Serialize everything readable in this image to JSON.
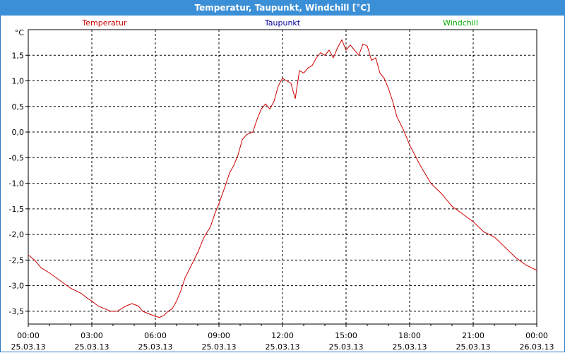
{
  "window": {
    "title": "Temperatur, Taupunkt, Windchill [°C]",
    "title_bar_color": "#3a8fd6"
  },
  "chart_data": {
    "type": "line",
    "title": "Temperatur, Taupunkt, Windchill [°C]",
    "ylabel": "°C",
    "xlabel": "",
    "ylim": [
      -3.75,
      2.0
    ],
    "xlim": [
      0,
      24
    ],
    "grid": true,
    "y_ticks": [
      -3.5,
      -3.0,
      -2.5,
      -2.0,
      -1.5,
      -1.0,
      -0.5,
      0.0,
      0.5,
      1.0,
      1.5
    ],
    "y_tick_labels": [
      "-3,5",
      "-3,0",
      "-2,5",
      "-2,0",
      "-1,5",
      "-1,0",
      "-0,5",
      "0,0",
      "0,5",
      "1,0",
      "1,5"
    ],
    "x_ticks": [
      {
        "x": 0,
        "time": "00:00",
        "date": "25.03.13"
      },
      {
        "x": 3,
        "time": "03:00",
        "date": "25.03.13"
      },
      {
        "x": 6,
        "time": "06:00",
        "date": "25.03.13"
      },
      {
        "x": 9,
        "time": "09:00",
        "date": "25.03.13"
      },
      {
        "x": 12,
        "time": "12:00",
        "date": "25.03.13"
      },
      {
        "x": 15,
        "time": "15:00",
        "date": "25.03.13"
      },
      {
        "x": 18,
        "time": "18:00",
        "date": "25.03.13"
      },
      {
        "x": 21,
        "time": "21:00",
        "date": "25.03.13"
      },
      {
        "x": 24,
        "time": "00:00",
        "date": "26.03.13"
      }
    ],
    "legend": [
      {
        "name": "Temperatur",
        "color": "#cc0000",
        "position": "left"
      },
      {
        "name": "Taupunkt",
        "color": "#000099",
        "position": "center"
      },
      {
        "name": "Windchill",
        "color": "#00aa00",
        "position": "right"
      }
    ],
    "series": [
      {
        "name": "Temperatur",
        "color": "#cc0000",
        "x": [
          0,
          0.3,
          0.6,
          1.0,
          1.5,
          2.0,
          2.5,
          2.8,
          3.0,
          3.3,
          3.6,
          3.9,
          4.2,
          4.4,
          4.6,
          4.9,
          5.2,
          5.4,
          5.7,
          6.0,
          6.2,
          6.4,
          6.6,
          6.8,
          7.0,
          7.2,
          7.4,
          7.7,
          8.0,
          8.3,
          8.6,
          8.8,
          9.0,
          9.3,
          9.5,
          9.7,
          9.9,
          10.1,
          10.3,
          10.6,
          10.8,
          11.0,
          11.2,
          11.4,
          11.6,
          11.8,
          12.0,
          12.2,
          12.4,
          12.6,
          12.8,
          13.0,
          13.2,
          13.4,
          13.6,
          13.8,
          14.0,
          14.2,
          14.4,
          14.6,
          14.8,
          15.0,
          15.2,
          15.4,
          15.6,
          15.8,
          16.0,
          16.2,
          16.4,
          16.6,
          16.8,
          17.0,
          17.2,
          17.4,
          17.7,
          18.0,
          18.5,
          19.0,
          19.5,
          20.0,
          20.5,
          21.0,
          21.5,
          22.0,
          22.5,
          23.0,
          23.5,
          24.0
        ],
        "values": [
          -2.4,
          -2.5,
          -2.65,
          -2.75,
          -2.9,
          -3.05,
          -3.15,
          -3.25,
          -3.3,
          -3.4,
          -3.45,
          -3.5,
          -3.5,
          -3.45,
          -3.4,
          -3.35,
          -3.4,
          -3.5,
          -3.55,
          -3.6,
          -3.62,
          -3.58,
          -3.5,
          -3.45,
          -3.3,
          -3.1,
          -2.85,
          -2.6,
          -2.35,
          -2.05,
          -1.85,
          -1.6,
          -1.4,
          -1.05,
          -0.8,
          -0.65,
          -0.45,
          -0.15,
          -0.05,
          0.0,
          0.25,
          0.45,
          0.55,
          0.45,
          0.6,
          0.9,
          1.05,
          1.0,
          0.95,
          0.65,
          1.2,
          1.15,
          1.25,
          1.3,
          1.45,
          1.55,
          1.5,
          1.6,
          1.45,
          1.65,
          1.8,
          1.6,
          1.7,
          1.6,
          1.5,
          1.72,
          1.68,
          1.4,
          1.45,
          1.15,
          1.05,
          0.85,
          0.6,
          0.3,
          0.05,
          -0.25,
          -0.65,
          -1.0,
          -1.2,
          -1.45,
          -1.6,
          -1.75,
          -1.95,
          -2.05,
          -2.25,
          -2.45,
          -2.6,
          -2.7
        ]
      },
      {
        "name": "Taupunkt",
        "color": "#000099",
        "x": [],
        "values": []
      },
      {
        "name": "Windchill",
        "color": "#00aa00",
        "x": [],
        "values": []
      }
    ]
  }
}
